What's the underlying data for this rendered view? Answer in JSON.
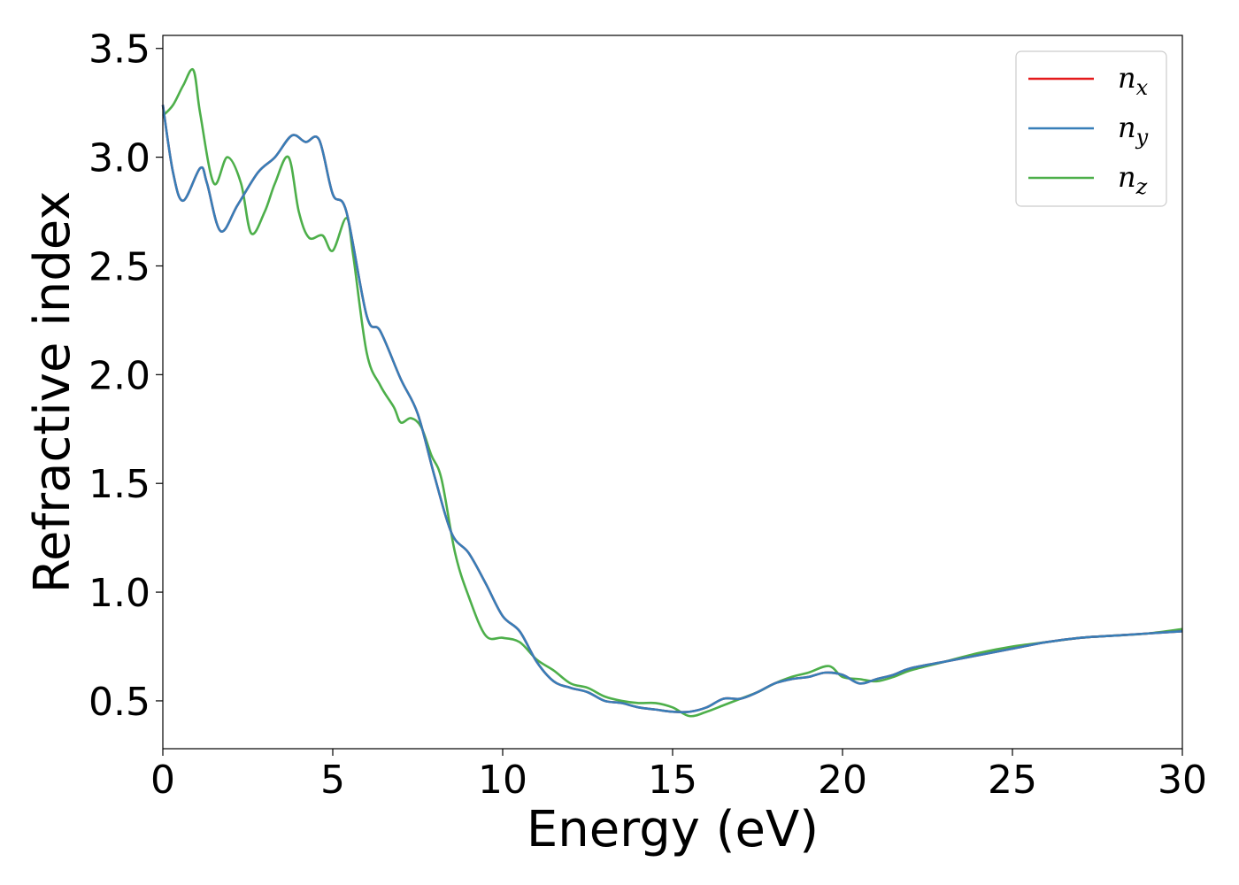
{
  "chart_data": {
    "type": "line",
    "title": "",
    "xlabel": "Energy (eV)",
    "ylabel": "Refractive index",
    "xlim": [
      0,
      30
    ],
    "ylim": [
      0.28,
      3.56
    ],
    "grid": false,
    "legend_position": "top-right",
    "xticks": [
      "0",
      "5",
      "10",
      "15",
      "20",
      "25",
      "30"
    ],
    "yticks": [
      "0.5",
      "1.0",
      "1.5",
      "2.0",
      "2.5",
      "3.0",
      "3.5"
    ],
    "series": [
      {
        "name": "n",
        "subscript": "x",
        "color": "#e41a1c",
        "x": [
          0,
          0.3,
          0.6,
          1.1,
          1.3,
          1.7,
          2.2,
          2.8,
          3.3,
          3.8,
          4.2,
          4.6,
          5.0,
          5.4,
          6.0,
          6.4,
          7.0,
          7.5,
          8.0,
          8.5,
          9.0,
          9.5,
          10.0,
          10.5,
          11.0,
          11.5,
          12.0,
          12.5,
          13.0,
          13.5,
          14.0,
          14.5,
          15.0,
          15.5,
          16.0,
          16.5,
          17.0,
          17.5,
          18.0,
          18.5,
          19.0,
          19.5,
          20.0,
          20.5,
          21.0,
          21.5,
          22.0,
          23.0,
          24.0,
          25.0,
          26.0,
          27.0,
          28.0,
          29.0,
          30.0
        ],
        "y": [
          3.24,
          2.93,
          2.8,
          2.95,
          2.88,
          2.66,
          2.78,
          2.93,
          3.0,
          3.1,
          3.07,
          3.08,
          2.83,
          2.75,
          2.27,
          2.2,
          1.98,
          1.82,
          1.53,
          1.27,
          1.18,
          1.04,
          0.89,
          0.82,
          0.68,
          0.59,
          0.56,
          0.54,
          0.5,
          0.49,
          0.47,
          0.46,
          0.45,
          0.45,
          0.47,
          0.51,
          0.51,
          0.54,
          0.58,
          0.6,
          0.61,
          0.63,
          0.62,
          0.58,
          0.6,
          0.62,
          0.65,
          0.68,
          0.71,
          0.74,
          0.77,
          0.79,
          0.8,
          0.81,
          0.82
        ]
      },
      {
        "name": "n",
        "subscript": "y",
        "color": "#377eb8",
        "x": [
          0,
          0.3,
          0.6,
          1.1,
          1.3,
          1.7,
          2.2,
          2.8,
          3.3,
          3.8,
          4.2,
          4.6,
          5.0,
          5.4,
          6.0,
          6.4,
          7.0,
          7.5,
          8.0,
          8.5,
          9.0,
          9.5,
          10.0,
          10.5,
          11.0,
          11.5,
          12.0,
          12.5,
          13.0,
          13.5,
          14.0,
          14.5,
          15.0,
          15.5,
          16.0,
          16.5,
          17.0,
          17.5,
          18.0,
          18.5,
          19.0,
          19.5,
          20.0,
          20.5,
          21.0,
          21.5,
          22.0,
          23.0,
          24.0,
          25.0,
          26.0,
          27.0,
          28.0,
          29.0,
          30.0
        ],
        "y": [
          3.24,
          2.93,
          2.8,
          2.95,
          2.88,
          2.66,
          2.78,
          2.93,
          3.0,
          3.1,
          3.07,
          3.08,
          2.83,
          2.75,
          2.27,
          2.2,
          1.98,
          1.82,
          1.53,
          1.27,
          1.18,
          1.04,
          0.89,
          0.82,
          0.68,
          0.59,
          0.56,
          0.54,
          0.5,
          0.49,
          0.47,
          0.46,
          0.45,
          0.45,
          0.47,
          0.51,
          0.51,
          0.54,
          0.58,
          0.6,
          0.61,
          0.63,
          0.62,
          0.58,
          0.6,
          0.62,
          0.65,
          0.68,
          0.71,
          0.74,
          0.77,
          0.79,
          0.8,
          0.81,
          0.82
        ]
      },
      {
        "name": "n",
        "subscript": "z",
        "color": "#4daf4a",
        "x": [
          0,
          0.3,
          0.6,
          0.9,
          1.1,
          1.5,
          1.9,
          2.3,
          2.6,
          3.0,
          3.3,
          3.7,
          4.0,
          4.3,
          4.7,
          5.0,
          5.4,
          5.6,
          6.0,
          6.4,
          6.8,
          7.0,
          7.3,
          7.6,
          7.9,
          8.2,
          8.6,
          9.0,
          9.5,
          10.0,
          10.5,
          11.0,
          11.5,
          12.0,
          12.5,
          13.0,
          13.5,
          14.0,
          14.5,
          15.0,
          15.5,
          16.0,
          16.5,
          17.0,
          17.5,
          18.0,
          18.5,
          19.0,
          19.6,
          20.0,
          20.5,
          21.0,
          21.5,
          22.0,
          23.0,
          24.0,
          25.0,
          26.0,
          27.0,
          28.0,
          29.0,
          30.0
        ],
        "y": [
          3.19,
          3.24,
          3.33,
          3.4,
          3.2,
          2.88,
          3.0,
          2.88,
          2.65,
          2.75,
          2.88,
          3.0,
          2.75,
          2.63,
          2.64,
          2.57,
          2.72,
          2.55,
          2.1,
          1.95,
          1.85,
          1.78,
          1.8,
          1.76,
          1.63,
          1.52,
          1.18,
          0.98,
          0.8,
          0.79,
          0.77,
          0.69,
          0.64,
          0.58,
          0.56,
          0.52,
          0.5,
          0.49,
          0.49,
          0.47,
          0.43,
          0.45,
          0.48,
          0.51,
          0.54,
          0.58,
          0.61,
          0.63,
          0.66,
          0.61,
          0.6,
          0.59,
          0.61,
          0.64,
          0.68,
          0.72,
          0.75,
          0.77,
          0.79,
          0.8,
          0.81,
          0.83
        ]
      }
    ]
  }
}
